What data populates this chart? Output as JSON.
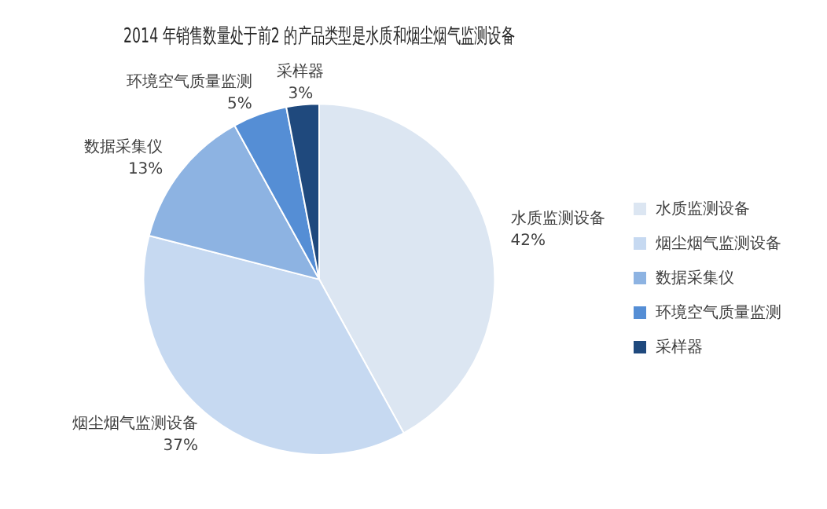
{
  "chart_data": {
    "type": "pie",
    "title": "2014 年销售数量处于前2 的产品类型是水质和烟尘烟气监测设备",
    "categories": [
      "水质监测设备",
      "烟尘烟气监测设备",
      "数据采集仪",
      "环境空气质量监测",
      "采样器"
    ],
    "values": [
      42,
      37,
      13,
      5,
      3
    ],
    "value_labels": [
      "42%",
      "37%",
      "13%",
      "5%",
      "3%"
    ],
    "colors": [
      "#dce6f2",
      "#c6d9f1",
      "#8db3e2",
      "#558ed5",
      "#1f497d"
    ],
    "legend": "right"
  }
}
